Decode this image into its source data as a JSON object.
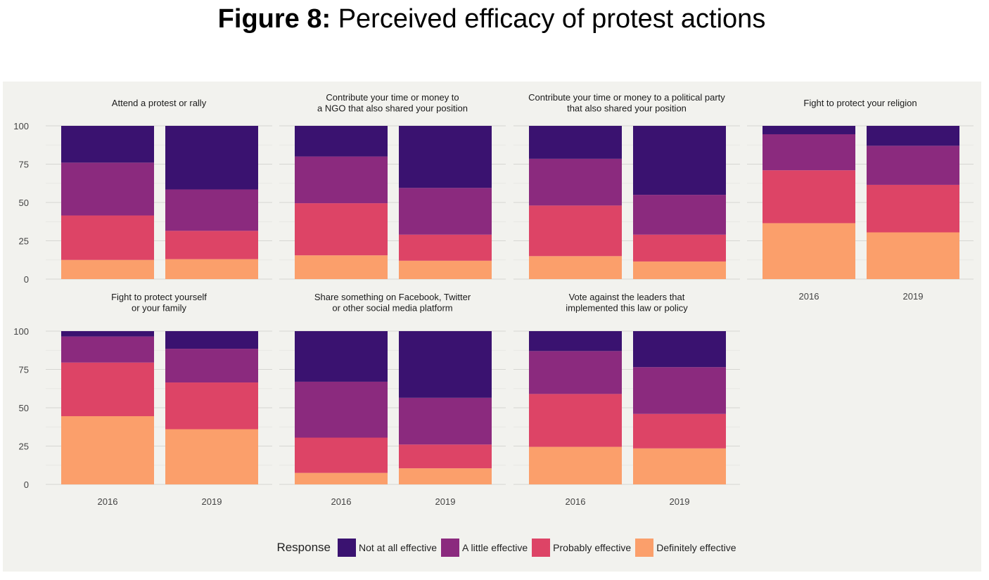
{
  "figure": {
    "label": "Figure 8:",
    "title": "Perceived efficacy of protest actions"
  },
  "colors": {
    "not_at_all": "#3a1270",
    "a_little": "#8b2a7e",
    "probably": "#dd4466",
    "definitely": "#fb9f6b",
    "background": "#f2f2ee",
    "grid": "#d9d9d9"
  },
  "chart_data": {
    "type": "bar",
    "stacked": true,
    "y_ticks": [
      0,
      25,
      50,
      75,
      100
    ],
    "ylim": [
      0,
      100
    ],
    "categories": [
      "2016",
      "2019"
    ],
    "legend": {
      "title": "Response",
      "placement": "bottom",
      "entries": [
        "Not at all effective",
        "A little effective",
        "Probably effective",
        "Definitely effective"
      ]
    },
    "panels": [
      {
        "title": [
          "Attend a protest or rally"
        ],
        "series": {
          "Definitely effective": [
            12.5,
            13
          ],
          "Probably effective": [
            29,
            18.5
          ],
          "A little effective": [
            34.5,
            27
          ],
          "Not at all effective": [
            24,
            41.5
          ]
        }
      },
      {
        "title": [
          "Contribute your time or money to",
          "a NGO that also shared your position"
        ],
        "series": {
          "Definitely effective": [
            15.5,
            12
          ],
          "Probably effective": [
            34,
            17
          ],
          "A little effective": [
            30.5,
            30.5
          ],
          "Not at all effective": [
            20,
            40.5
          ]
        }
      },
      {
        "title": [
          "Contribute your time or money to a political party",
          "that also shared your position"
        ],
        "series": {
          "Definitely effective": [
            15,
            11.5
          ],
          "Probably effective": [
            33,
            17.5
          ],
          "A little effective": [
            30.5,
            26
          ],
          "Not at all effective": [
            21.5,
            45
          ]
        }
      },
      {
        "title": [
          "Fight to protect your religion"
        ],
        "series": {
          "Definitely effective": [
            36.5,
            30.5
          ],
          "Probably effective": [
            34.5,
            31
          ],
          "A little effective": [
            23.5,
            25.5
          ],
          "Not at all effective": [
            5.5,
            13
          ]
        }
      },
      {
        "title": [
          "Fight to protect yourself",
          "or your family"
        ],
        "series": {
          "Definitely effective": [
            44.5,
            36
          ],
          "Probably effective": [
            35,
            30.5
          ],
          "A little effective": [
            17,
            22
          ],
          "Not at all effective": [
            3.5,
            11.5
          ]
        }
      },
      {
        "title": [
          "Share something on Facebook, Twitter",
          "or other social media platform"
        ],
        "series": {
          "Definitely effective": [
            7.5,
            10.5
          ],
          "Probably effective": [
            23,
            15.5
          ],
          "A little effective": [
            36.5,
            30.5
          ],
          "Not at all effective": [
            33,
            43.5
          ]
        }
      },
      {
        "title": [
          "Vote against the leaders that",
          "implemented this law or policy"
        ],
        "series": {
          "Definitely effective": [
            24.5,
            23.5
          ],
          "Probably effective": [
            34.5,
            22.5
          ],
          "A little effective": [
            28,
            30.5
          ],
          "Not at all effective": [
            13,
            23.5
          ]
        }
      }
    ]
  }
}
